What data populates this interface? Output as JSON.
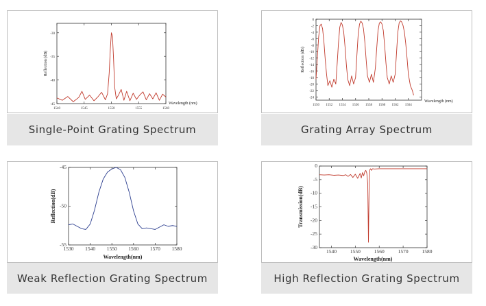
{
  "panels": [
    {
      "caption": "Single-Point Grating Spectrum",
      "chart_data": {
        "type": "line",
        "title": "",
        "xlabel": "Wavelength (nm)",
        "ylabel": "Reflection (dB)",
        "xlim": [
          1540,
          1560
        ],
        "ylim": [
          -45,
          -28
        ],
        "xticks": [
          1540,
          1545,
          1550,
          1555,
          1560
        ],
        "yticks": [
          -30,
          -35,
          -40,
          -45
        ],
        "series": [
          {
            "name": "reflection",
            "color": "#c0392b",
            "x": [
              1540,
              1541,
              1542,
              1543,
              1544,
              1544.6,
              1545.2,
              1546,
              1546.8,
              1547.5,
              1548.2,
              1548.9,
              1549.3,
              1549.6,
              1549.8,
              1550.0,
              1550.2,
              1550.4,
              1550.6,
              1550.9,
              1551.3,
              1551.8,
              1552.3,
              1552.8,
              1553.4,
              1554,
              1554.6,
              1555.2,
              1555.8,
              1556.4,
              1557,
              1557.6,
              1558.2,
              1558.8,
              1559.4,
              1560
            ],
            "y": [
              -43.8,
              -44.3,
              -43.5,
              -44.6,
              -43.7,
              -42.4,
              -44.1,
              -43.2,
              -44.4,
              -43.6,
              -42.6,
              -44.2,
              -42.9,
              -38.5,
              -33.5,
              -30.0,
              -30.8,
              -35.5,
              -41.5,
              -44.0,
              -43.2,
              -42.0,
              -44.3,
              -42.4,
              -44.4,
              -42.8,
              -44.1,
              -43.2,
              -42.5,
              -44.2,
              -42.9,
              -44.0,
              -42.7,
              -44.3,
              -43.0,
              -43.6
            ]
          }
        ]
      }
    },
    {
      "caption": "Grating Array Spectrum",
      "chart_data": {
        "type": "line",
        "title": "",
        "xlabel": "Wavelength (nm)",
        "ylabel": "Reflection (dB)",
        "xlim": [
          1550,
          1566
        ],
        "ylim": [
          -25,
          0
        ],
        "xticks": [
          1550,
          1552,
          1554,
          1556,
          1558,
          1560,
          1562,
          1564
        ],
        "yticks": [
          0,
          -2,
          -4,
          -6,
          -8,
          -10,
          -12,
          -14,
          -16,
          -18,
          -20,
          -22,
          -24
        ],
        "series": [
          {
            "name": "reflection",
            "color": "#c0392b",
            "x": [
              1550.0,
              1550.2,
              1550.4,
              1550.6,
              1550.8,
              1551.0,
              1551.2,
              1551.4,
              1551.6,
              1551.8,
              1552.1,
              1552.4,
              1552.7,
              1553.0,
              1553.2,
              1553.4,
              1553.6,
              1553.8,
              1554.0,
              1554.2,
              1554.4,
              1554.6,
              1554.8,
              1555.1,
              1555.4,
              1555.7,
              1556.0,
              1556.2,
              1556.4,
              1556.6,
              1556.8,
              1557.0,
              1557.2,
              1557.4,
              1557.6,
              1557.8,
              1558.1,
              1558.4,
              1558.7,
              1559.0,
              1559.2,
              1559.4,
              1559.6,
              1559.8,
              1560.0,
              1560.2,
              1560.4,
              1560.6,
              1560.8,
              1561.1,
              1561.4,
              1561.7,
              1562.0,
              1562.2,
              1562.4,
              1562.6,
              1562.8,
              1563.0,
              1563.2,
              1563.4,
              1563.6,
              1563.8,
              1564.0,
              1564.3,
              1564.6,
              1564.8
            ],
            "y": [
              -18.5,
              -12.0,
              -5.5,
              -2.0,
              -1.5,
              -3.0,
              -7.0,
              -12.5,
              -17.0,
              -20.5,
              -19.0,
              -21.0,
              -18.5,
              -20.0,
              -14.0,
              -7.5,
              -2.5,
              -1.0,
              -1.8,
              -4.0,
              -8.5,
              -14.0,
              -18.5,
              -20.5,
              -17.5,
              -20.0,
              -18.0,
              -11.0,
              -4.5,
              -1.5,
              -0.6,
              -1.2,
              -3.0,
              -7.0,
              -12.5,
              -17.5,
              -19.5,
              -17.0,
              -19.5,
              -15.0,
              -9.0,
              -3.5,
              -1.2,
              -0.8,
              -1.5,
              -3.5,
              -8.0,
              -13.5,
              -18.0,
              -20.0,
              -17.5,
              -19.5,
              -17.0,
              -10.5,
              -4.0,
              -1.2,
              -0.5,
              -0.9,
              -2.0,
              -4.0,
              -7.5,
              -12.0,
              -17.0,
              -20.5,
              -22.0,
              -23.5
            ]
          }
        ]
      }
    },
    {
      "caption": "Weak Reflection Grating Spectrum",
      "chart_data": {
        "type": "line",
        "title": "",
        "xlabel": "Wavelength(nm)",
        "ylabel": "Reflection(dB)",
        "xlim": [
          1530,
          1580
        ],
        "ylim": [
          -55,
          -45
        ],
        "xticks": [
          1530,
          1540,
          1550,
          1560,
          1570,
          1580
        ],
        "yticks": [
          -45,
          -50,
          -55
        ],
        "series": [
          {
            "name": "reflection",
            "color": "#2c3e8f",
            "x": [
              1530,
              1532,
              1534,
              1536,
              1538,
              1540,
              1542,
              1544,
              1546,
              1548,
              1550,
              1552,
              1554,
              1556,
              1558,
              1560,
              1562,
              1564,
              1566,
              1568,
              1570,
              1572,
              1574,
              1576,
              1578,
              1580
            ],
            "y": [
              -52.4,
              -52.3,
              -52.6,
              -52.9,
              -53.0,
              -52.3,
              -50.5,
              -48.2,
              -46.5,
              -45.6,
              -45.2,
              -45.0,
              -45.3,
              -46.3,
              -48.2,
              -50.6,
              -52.3,
              -52.9,
              -52.8,
              -52.9,
              -53.0,
              -52.7,
              -52.4,
              -52.6,
              -52.5,
              -52.6
            ]
          }
        ]
      }
    },
    {
      "caption": "High Reflection Grating Spectrum",
      "chart_data": {
        "type": "line",
        "title": "",
        "xlabel": "Wavelength(nm)",
        "ylabel": "Transmission(dB)",
        "xlim": [
          1535,
          1580
        ],
        "ylim": [
          -30,
          0
        ],
        "xticks": [
          1540,
          1550,
          1560,
          1570,
          1580
        ],
        "yticks": [
          0,
          -5,
          -10,
          -15,
          -20,
          -25,
          -30
        ],
        "series": [
          {
            "name": "transmission",
            "color": "#c0392b",
            "x": [
              1535,
              1537,
              1539,
              1541,
              1543,
              1545,
              1546,
              1547,
              1548,
              1549,
              1550,
              1551,
              1552,
              1552.5,
              1553,
              1553.5,
              1554,
              1554.4,
              1554.8,
              1555.2,
              1555.5,
              1555.8,
              1556.1,
              1556.4,
              1556.7,
              1557.2,
              1558,
              1560,
              1565,
              1570,
              1575,
              1580
            ],
            "y": [
              -3.2,
              -3.3,
              -3.2,
              -3.4,
              -3.3,
              -3.5,
              -3.2,
              -3.8,
              -3.1,
              -4.2,
              -3.0,
              -4.5,
              -2.7,
              -4.4,
              -2.4,
              -3.6,
              -2.0,
              -1.6,
              -2.6,
              -6.5,
              -28.0,
              -6.0,
              -1.3,
              -1.0,
              -1.6,
              -1.0,
              -1.1,
              -1.0,
              -1.0,
              -1.0,
              -1.0,
              -1.0
            ]
          }
        ]
      }
    }
  ]
}
